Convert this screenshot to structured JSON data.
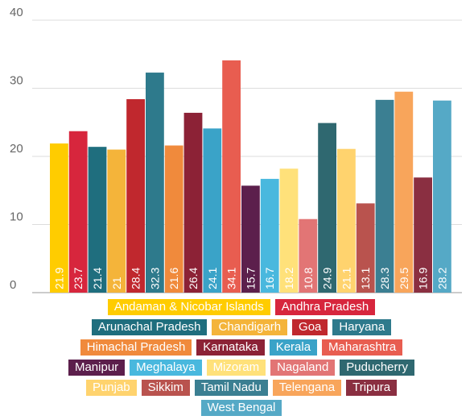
{
  "chart_data": {
    "type": "bar",
    "ylim": [
      0,
      40
    ],
    "yticks": [
      "0",
      "10",
      "20",
      "30",
      "40"
    ],
    "grid": true,
    "legend_position": "bottom",
    "categories": [
      "Andaman & Nicobar Islands",
      "Andhra Pradesh",
      "Arunachal Pradesh",
      "Chandigarh",
      "Goa",
      "Haryana",
      "Himachal Pradesh",
      "Karnataka",
      "Kerala",
      "Maharashtra",
      "Manipur",
      "Meghalaya",
      "Mizoram",
      "Nagaland",
      "Puducherry",
      "Punjab",
      "Sikkim",
      "Tamil Nadu",
      "Telengana",
      "Tripura",
      "West Bengal"
    ],
    "values": [
      21.9,
      23.7,
      21.4,
      21,
      28.4,
      32.3,
      21.6,
      26.4,
      24.1,
      34.1,
      15.7,
      16.7,
      18.2,
      10.8,
      24.9,
      21.1,
      13.1,
      28.3,
      29.5,
      16.9,
      28.2
    ],
    "value_labels": [
      "21.9",
      "23.7",
      "21.4",
      "21",
      "28.4",
      "32.3",
      "21.6",
      "26.4",
      "24.1",
      "34.1",
      "15.7",
      "16.7",
      "18.2",
      "10.8",
      "24.9",
      "21.1",
      "13.1",
      "28.3",
      "29.5",
      "16.9",
      "28.2"
    ],
    "colors": [
      "#ffcc00",
      "#d7263d",
      "#1f6e7e",
      "#f4b43a",
      "#c0282e",
      "#2e7a8c",
      "#f08a3c",
      "#8c2236",
      "#3aa3c8",
      "#e85d50",
      "#5c1f4c",
      "#49b8de",
      "#ffe17a",
      "#e27575",
      "#2f6870",
      "#ffd36e",
      "#b9534e",
      "#3b7f92",
      "#f8a55b",
      "#8a2f41",
      "#55a9c6"
    ],
    "legend_rows": [
      [
        0,
        1
      ],
      [
        2,
        3,
        4,
        5
      ],
      [
        6,
        7,
        8,
        9
      ],
      [
        10,
        11,
        12,
        13,
        14
      ],
      [
        15,
        16,
        17,
        18,
        19
      ],
      [
        20
      ]
    ]
  }
}
